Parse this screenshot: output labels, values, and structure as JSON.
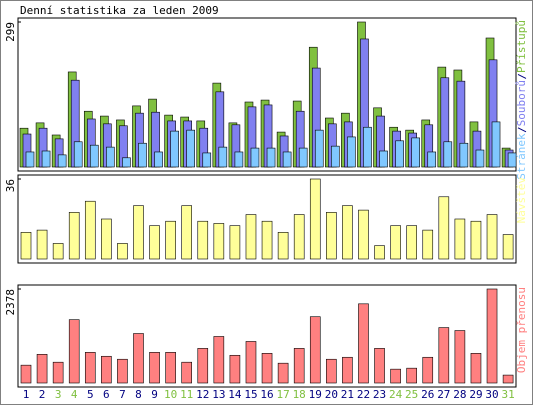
{
  "chart_data": [
    {
      "type": "bar",
      "title": "Denní statistika za leden 2009",
      "ylim": [
        0,
        299
      ],
      "yticks": [
        299
      ],
      "series": [
        {
          "name": "Stránek",
          "color": "#80c8ff",
          "values": [
            31,
            33,
            25,
            52,
            45,
            41,
            19,
            49,
            31,
            74,
            76,
            29,
            41,
            31,
            39,
            39,
            31,
            39,
            76,
            43,
            62,
            82,
            33,
            54,
            60,
            31,
            52,
            49,
            35,
            93,
            29
          ]
        },
        {
          "name": "Souborů",
          "color": "#8080f0",
          "values": [
            68,
            80,
            58,
            179,
            99,
            89,
            85,
            111,
            113,
            95,
            95,
            80,
            155,
            87,
            124,
            128,
            64,
            115,
            204,
            89,
            93,
            264,
            105,
            74,
            70,
            87,
            184,
            177,
            74,
            221,
            35
          ]
        },
        {
          "name": "Přístupů",
          "color": "#80c040",
          "values": [
            80,
            91,
            66,
            196,
            115,
            105,
            97,
            126,
            140,
            107,
            103,
            95,
            173,
            91,
            134,
            138,
            72,
            136,
            247,
            101,
            111,
            299,
            122,
            82,
            76,
            97,
            206,
            200,
            93,
            266,
            39
          ]
        }
      ]
    },
    {
      "type": "bar",
      "ylim": [
        0,
        36
      ],
      "yticks": [
        36
      ],
      "series": [
        {
          "name": "Návštěv",
          "color": "#ffff99",
          "values": [
            12,
            13,
            7,
            21,
            26,
            18,
            7,
            24,
            15,
            17,
            24,
            17,
            16,
            15,
            20,
            17,
            12,
            20,
            36,
            21,
            24,
            22,
            6,
            15,
            15,
            13,
            28,
            18,
            17,
            20,
            11
          ]
        }
      ]
    },
    {
      "type": "bar",
      "ylim": [
        0,
        2378
      ],
      "yticks": [
        2378
      ],
      "categories": [
        "1",
        "2",
        "3",
        "4",
        "5",
        "6",
        "7",
        "8",
        "9",
        "10",
        "11",
        "12",
        "13",
        "14",
        "15",
        "16",
        "17",
        "18",
        "19",
        "20",
        "21",
        "22",
        "23",
        "24",
        "25",
        "26",
        "27",
        "28",
        "29",
        "30",
        "31"
      ],
      "category_label_colors": [
        "#000080",
        "#000080",
        "#80c040",
        "#80c040",
        "#000080",
        "#000080",
        "#000080",
        "#000080",
        "#000080",
        "#80c040",
        "#80c040",
        "#000080",
        "#000080",
        "#000080",
        "#000080",
        "#000080",
        "#80c040",
        "#80c040",
        "#000080",
        "#000080",
        "#000080",
        "#000080",
        "#000080",
        "#80c040",
        "#80c040",
        "#000080",
        "#000080",
        "#000080",
        "#000080",
        "#000080",
        "#80c040"
      ],
      "series": [
        {
          "name": "Objem přenosu",
          "color": "#ff8080",
          "values": [
            451,
            726,
            526,
            1602,
            776,
            676,
            601,
            1252,
            776,
            776,
            526,
            876,
            1177,
            701,
            1051,
            751,
            501,
            876,
            1677,
            601,
            651,
            2003,
            876,
            350,
            375,
            651,
            1402,
            1327,
            751,
            2378,
            200
          ]
        }
      ]
    }
  ]
}
